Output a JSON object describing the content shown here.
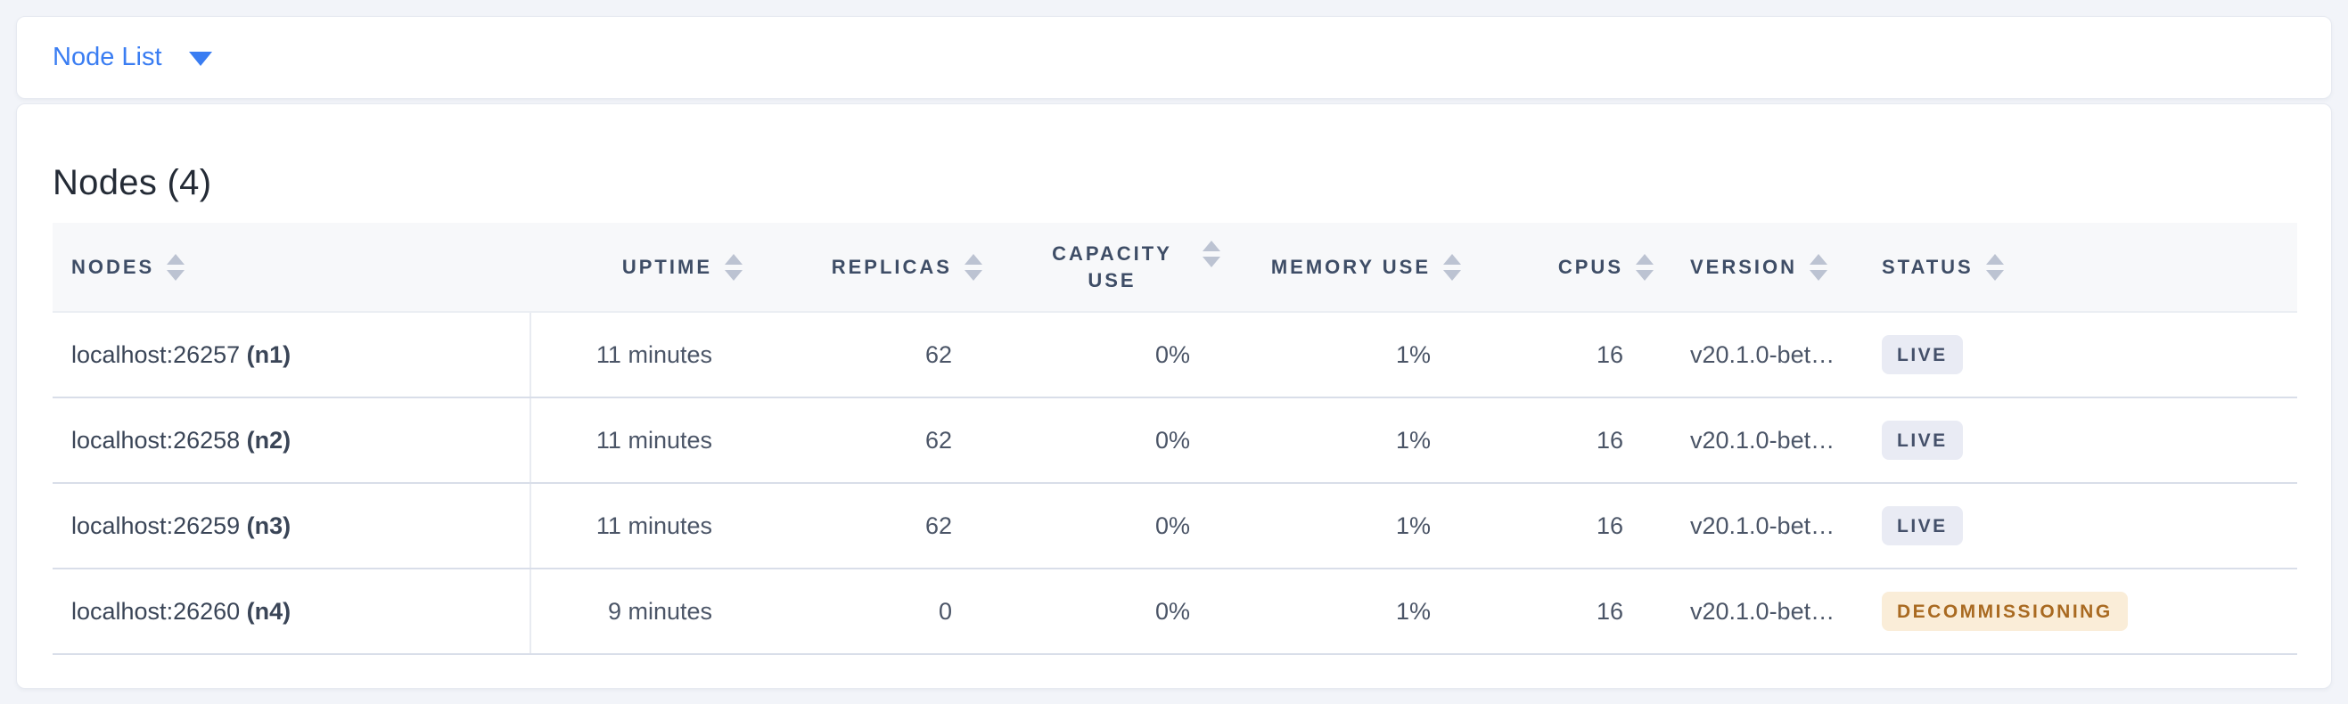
{
  "appearance": {
    "page_background": "#F2F4F9",
    "accent_blue": "#3A7DF2",
    "header_text_color": "#3E4D66",
    "badge_live_bg": "#E9EBF4",
    "badge_live_text": "#44506A",
    "badge_decommissioning_bg": "#FAEDD8",
    "badge_decommissioning_text": "#A96A21"
  },
  "toolbar": {
    "view_dropdown_label": "Node List",
    "caret_icon": "caret-down"
  },
  "main": {
    "title": "Nodes (4)",
    "table": {
      "columns": [
        {
          "label": "NODES"
        },
        {
          "label": "UPTIME"
        },
        {
          "label": "REPLICAS"
        },
        {
          "label": "CAPACITY USE"
        },
        {
          "label": "MEMORY USE"
        },
        {
          "label": "CPUS"
        },
        {
          "label": "VERSION"
        },
        {
          "label": "STATUS"
        }
      ],
      "rows": [
        {
          "address": "localhost:26257",
          "node_id": "(n1)",
          "uptime": "11 minutes",
          "replicas": "62",
          "capacity_use": "0%",
          "memory_use": "1%",
          "cpus": "16",
          "version": "v20.1.0-bet…",
          "status": "LIVE",
          "status_type": "live"
        },
        {
          "address": "localhost:26258",
          "node_id": "(n2)",
          "uptime": "11 minutes",
          "replicas": "62",
          "capacity_use": "0%",
          "memory_use": "1%",
          "cpus": "16",
          "version": "v20.1.0-bet…",
          "status": "LIVE",
          "status_type": "live"
        },
        {
          "address": "localhost:26259",
          "node_id": "(n3)",
          "uptime": "11 minutes",
          "replicas": "62",
          "capacity_use": "0%",
          "memory_use": "1%",
          "cpus": "16",
          "version": "v20.1.0-bet…",
          "status": "LIVE",
          "status_type": "live"
        },
        {
          "address": "localhost:26260",
          "node_id": "(n4)",
          "uptime": "9 minutes",
          "replicas": "0",
          "capacity_use": "0%",
          "memory_use": "1%",
          "cpus": "16",
          "version": "v20.1.0-bet…",
          "status": "DECOMMISSIONING",
          "status_type": "decommissioning"
        }
      ]
    }
  }
}
